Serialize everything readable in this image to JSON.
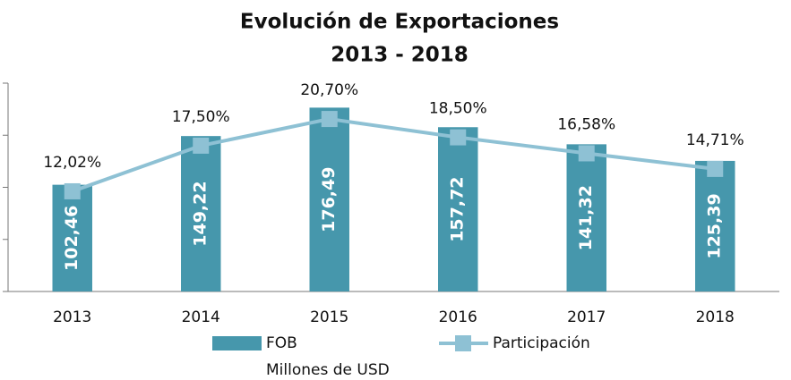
{
  "chart_data": {
    "type": "bar-line",
    "title": "Evolución de Exportaciones",
    "subtitle": "2013 - 2018",
    "ylabel": "Millones de USD",
    "categories": [
      "2013",
      "2014",
      "2015",
      "2016",
      "2017",
      "2018"
    ],
    "series": [
      {
        "name": "FOB",
        "type": "bar",
        "color": "#4697ac",
        "axis": "y",
        "values": [
          102.46,
          149.22,
          176.49,
          157.72,
          141.32,
          125.39
        ],
        "value_labels": [
          "102,46",
          "149,22",
          "176,49",
          "157,72",
          "141,32",
          "125,39"
        ]
      },
      {
        "name": "Participación",
        "type": "line",
        "color": "#8ec1d4",
        "axis": "y2",
        "values": [
          12.02,
          17.5,
          20.7,
          18.5,
          16.58,
          14.71
        ],
        "value_labels": [
          "12,02%",
          "17,50%",
          "20,70%",
          "18,50%",
          "16,58%",
          "14,71%"
        ]
      }
    ],
    "ylim": [
      0,
      200
    ],
    "yticks": [
      0,
      50,
      100,
      150,
      200
    ],
    "y2lim": [
      0,
      25
    ]
  }
}
